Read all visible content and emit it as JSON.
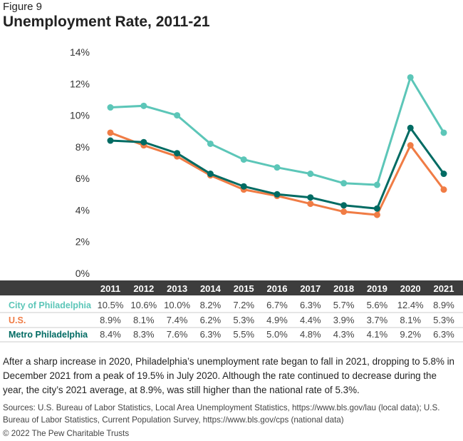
{
  "figure_label": "Figure 9",
  "title": "Unemployment Rate, 2011-21",
  "chart_data": {
    "type": "line",
    "title": "Unemployment Rate, 2011-21",
    "categories": [
      "2011",
      "2012",
      "2013",
      "2014",
      "2015",
      "2016",
      "2017",
      "2018",
      "2019",
      "2020",
      "2021"
    ],
    "ylim": [
      0,
      14
    ],
    "yticks": [
      "0%",
      "2%",
      "4%",
      "6%",
      "8%",
      "10%",
      "12%",
      "14%"
    ],
    "grid": false,
    "series": [
      {
        "name": "City of Philadelphia",
        "color": "#5cc6b8",
        "values": [
          10.5,
          10.6,
          10.0,
          8.2,
          7.2,
          6.7,
          6.3,
          5.7,
          5.6,
          12.4,
          8.9
        ],
        "labels": [
          "10.5%",
          "10.6%",
          "10.0%",
          "8.2%",
          "7.2%",
          "6.7%",
          "6.3%",
          "5.7%",
          "5.6%",
          "12.4%",
          "8.9%"
        ]
      },
      {
        "name": "U.S.",
        "color": "#f07c45",
        "values": [
          8.9,
          8.1,
          7.4,
          6.2,
          5.3,
          4.9,
          4.4,
          3.9,
          3.7,
          8.1,
          5.3
        ],
        "labels": [
          "8.9%",
          "8.1%",
          "7.4%",
          "6.2%",
          "5.3%",
          "4.9%",
          "4.4%",
          "3.9%",
          "3.7%",
          "8.1%",
          "5.3%"
        ]
      },
      {
        "name": "Metro Philadelphia",
        "color": "#006b63",
        "values": [
          8.4,
          8.3,
          7.6,
          6.3,
          5.5,
          5.0,
          4.8,
          4.3,
          4.1,
          9.2,
          6.3
        ],
        "labels": [
          "8.4%",
          "8.3%",
          "7.6%",
          "6.3%",
          "5.5%",
          "5.0%",
          "4.8%",
          "4.3%",
          "4.1%",
          "9.2%",
          "6.3%"
        ]
      }
    ]
  },
  "description": "After a sharp increase in 2020, Philadelphia’s unemployment rate began to fall in 2021, dropping to 5.8% in December 2021 from a peak of 19.5% in July 2020. Although the rate continued to decrease during the year, the city’s 2021 average, at 8.9%, was still higher than the national rate of 5.3%.",
  "sources": "Sources: U.S. Bureau of Labor Statistics, Local Area Unemployment Statistics, https://www.bls.gov/lau (local data); U.S. Bureau of Labor Statistics, Current Population Survey, https://www.bls.gov/cps (national data)",
  "copyright": "© 2022 The Pew Charitable Trusts"
}
